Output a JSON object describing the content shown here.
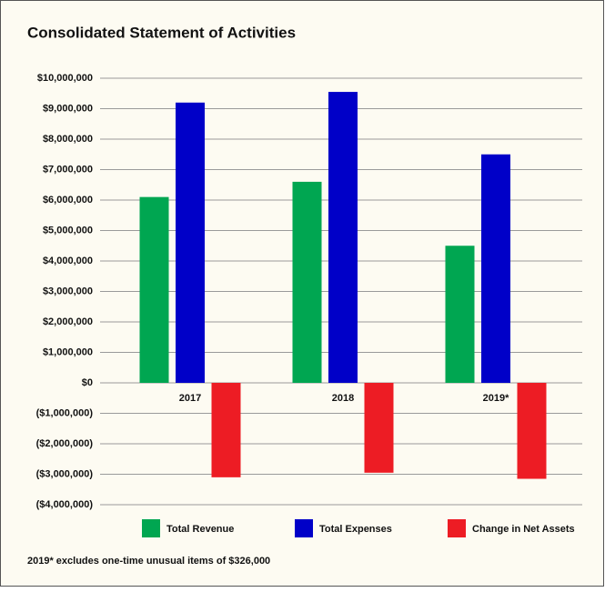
{
  "chart_data": {
    "type": "bar",
    "title": "Consolidated Statement of Activities",
    "categories": [
      "2017",
      "2018",
      "2019*"
    ],
    "series": [
      {
        "name": "Total Revenue",
        "color": "#00a651",
        "values": [
          6100000,
          6600000,
          4500000
        ]
      },
      {
        "name": "Total Expenses",
        "color": "#0000c8",
        "values": [
          9200000,
          9550000,
          7500000
        ]
      },
      {
        "name": "Change in Net Assets",
        "color": "#ed1c24",
        "values": [
          -3100000,
          -2950000,
          -3150000
        ]
      }
    ],
    "ylim": [
      -4000000,
      10000000
    ],
    "yticks": [
      {
        "value": -4000000,
        "label": "($4,000,000)"
      },
      {
        "value": -3000000,
        "label": "($3,000,000)"
      },
      {
        "value": -2000000,
        "label": "($2,000,000)"
      },
      {
        "value": -1000000,
        "label": "($1,000,000)"
      },
      {
        "value": 0,
        "label": "$0"
      },
      {
        "value": 1000000,
        "label": "$1,000,000"
      },
      {
        "value": 2000000,
        "label": "$2,000,000"
      },
      {
        "value": 3000000,
        "label": "$3,000,000"
      },
      {
        "value": 4000000,
        "label": "$4,000,000"
      },
      {
        "value": 5000000,
        "label": "$5,000,000"
      },
      {
        "value": 6000000,
        "label": "$6,000,000"
      },
      {
        "value": 7000000,
        "label": "$7,000,000"
      },
      {
        "value": 8000000,
        "label": "$8,000,000"
      },
      {
        "value": 9000000,
        "label": "$9,000,000"
      },
      {
        "value": 10000000,
        "label": "$10,000,000"
      }
    ],
    "grid": true,
    "legend": "bottom",
    "footnote": "2019* excludes one-time unusual items of $326,000"
  }
}
